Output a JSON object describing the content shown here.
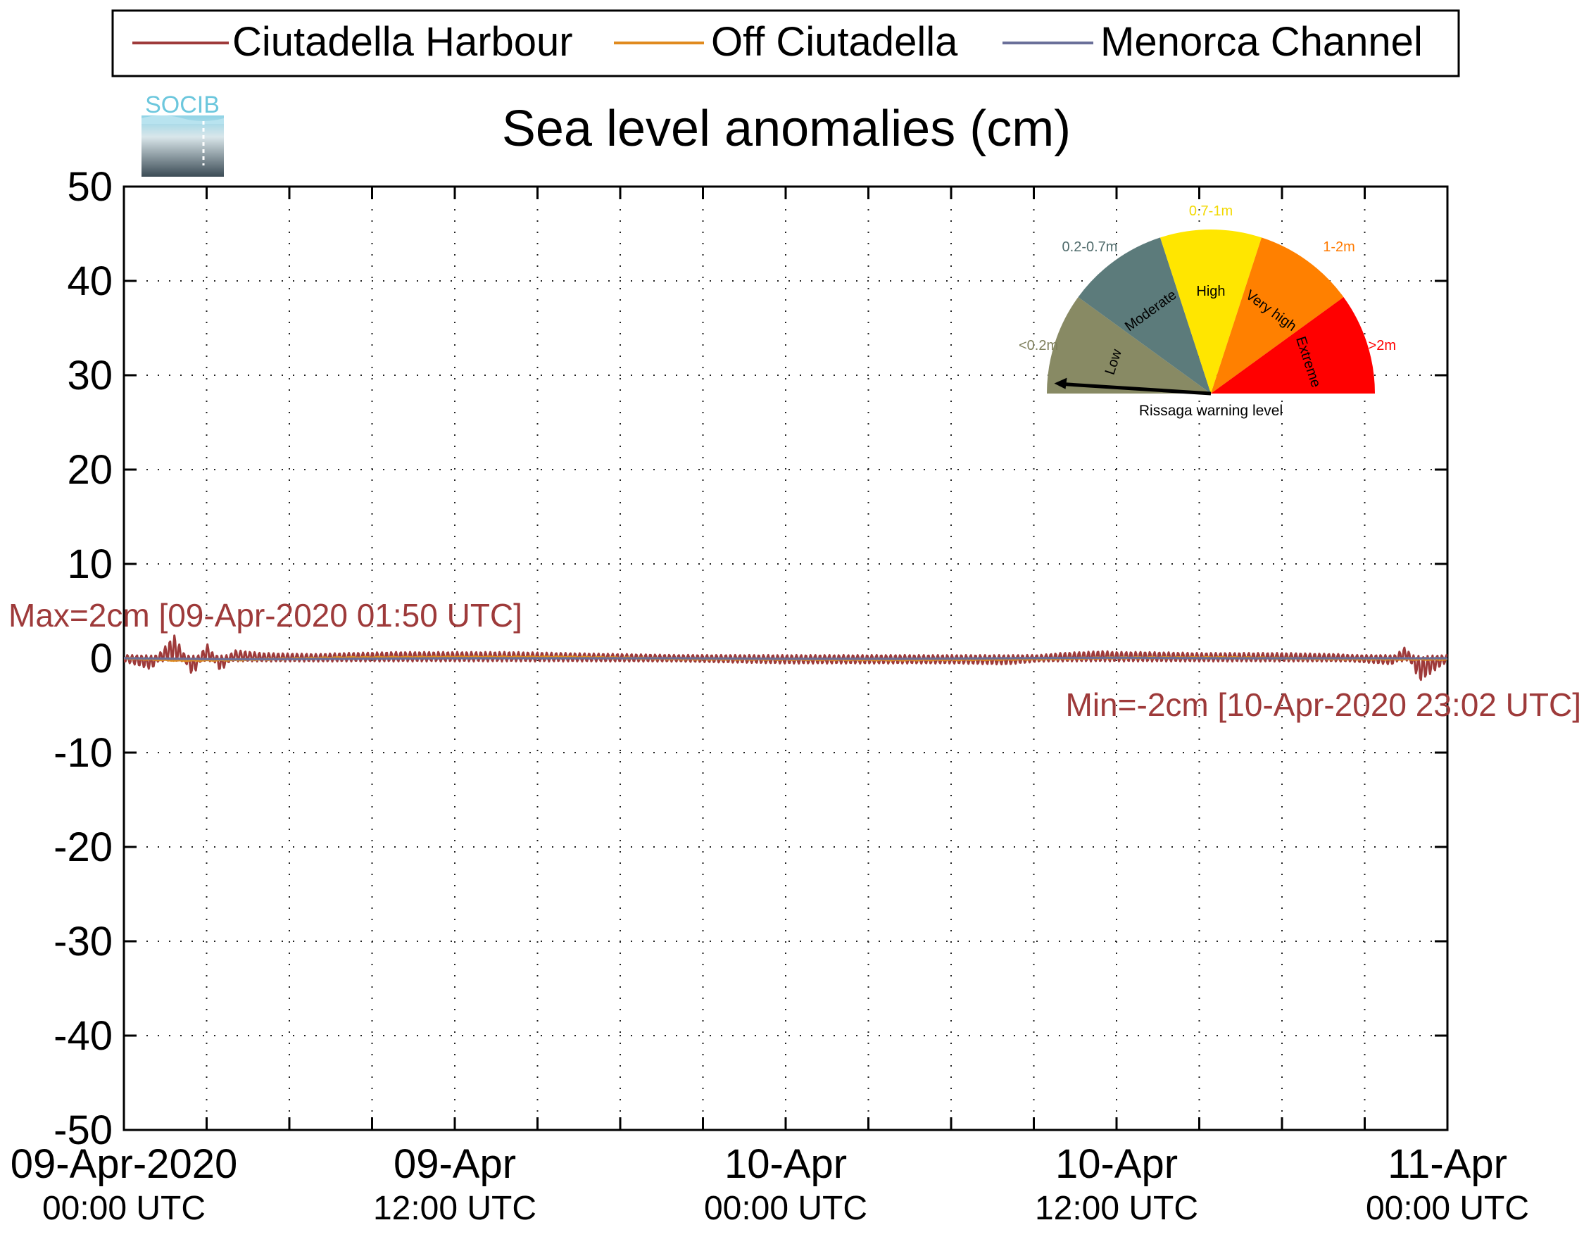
{
  "chart_data": {
    "type": "line",
    "title": "Sea level anomalies (cm)",
    "logo_text": "SOCIB",
    "ylim": [
      -50,
      50
    ],
    "yticks": [
      50,
      40,
      30,
      20,
      10,
      0,
      -10,
      -20,
      -30,
      -40,
      -50
    ],
    "xlim": [
      "09-Apr-2020 00:00 UTC",
      "11-Apr-2020 00:00 UTC"
    ],
    "xtick_hours": [
      0,
      12,
      24,
      36,
      48
    ],
    "xtick_labels": [
      {
        "date": "09-Apr-2020",
        "time": "00:00 UTC"
      },
      {
        "date": "09-Apr",
        "time": "12:00 UTC"
      },
      {
        "date": "10-Apr",
        "time": "00:00 UTC"
      },
      {
        "date": "10-Apr",
        "time": "12:00 UTC"
      },
      {
        "date": "11-Apr",
        "time": "00:00 UTC"
      }
    ],
    "minor_tick_hours": [
      3,
      6,
      9,
      15,
      18,
      21,
      27,
      30,
      33,
      39,
      42,
      45
    ],
    "grid": true,
    "legend_position": "top",
    "series": [
      {
        "name": "Ciutadella Harbour",
        "color": "#9e3a3a",
        "x_hours": [
          0,
          1,
          1.83,
          2.5,
          3,
          3.5,
          4,
          5,
          7,
          8,
          10,
          12,
          14,
          16,
          18,
          20,
          22,
          24,
          26,
          28,
          30,
          32,
          34,
          35.5,
          36,
          37,
          39,
          42,
          44,
          46,
          46.5,
          47,
          48
        ],
        "values": [
          0,
          -0.8,
          2,
          -1.5,
          1.2,
          -1,
          0.5,
          0.2,
          0.1,
          0.2,
          0.3,
          0.3,
          0.3,
          0.2,
          0.1,
          0,
          -0.1,
          -0.2,
          -0.2,
          -0.2,
          -0.2,
          -0.3,
          0.2,
          0.4,
          0.3,
          0.3,
          0.2,
          0.2,
          0.1,
          -0.3,
          0.9,
          -2,
          0
        ]
      },
      {
        "name": "Off Ciutadella",
        "color": "#e08a1e",
        "x_hours": [
          0,
          2,
          4,
          8,
          12,
          16,
          20,
          24,
          28,
          32,
          36,
          40,
          44,
          48
        ],
        "values": [
          0,
          -0.4,
          -0.3,
          0.1,
          0.2,
          0.2,
          -0.1,
          -0.2,
          -0.3,
          -0.2,
          0.1,
          0.1,
          -0.1,
          -0.2
        ]
      },
      {
        "name": "Menorca Channel",
        "color": "#6a6f99",
        "x_hours": [
          0,
          4,
          8,
          12,
          16,
          20,
          24,
          28,
          32,
          36,
          40,
          44,
          48
        ],
        "values": [
          0,
          -0.2,
          -0.1,
          0,
          0,
          0,
          -0.1,
          -0.1,
          0,
          0.1,
          0,
          0,
          0
        ]
      }
    ],
    "annotations": {
      "max": "Max=2cm [09-Apr-2020 01:50 UTC]",
      "min": "Min=-2cm [10-Apr-2020 23:02 UTC]"
    },
    "gauge": {
      "caption": "Rissaga warning level",
      "needle_level": "Low",
      "sectors": [
        {
          "name": "Low",
          "range": "<0.2m",
          "color": "#888a64",
          "range_color": "#7e7f5c"
        },
        {
          "name": "Moderate",
          "range": "0.2-0.7m",
          "color": "#5c7b7b",
          "range_color": "#4f6b6b"
        },
        {
          "name": "High",
          "range": "0.7-1m",
          "color": "#ffe600",
          "range_color": "#f2d800"
        },
        {
          "name": "Very high",
          "range": "1-2m",
          "color": "#ff8000",
          "range_color": "#ff7a00"
        },
        {
          "name": "Extreme",
          "range": ">2m",
          "color": "#ff0000",
          "range_color": "#ff0000"
        }
      ]
    }
  }
}
